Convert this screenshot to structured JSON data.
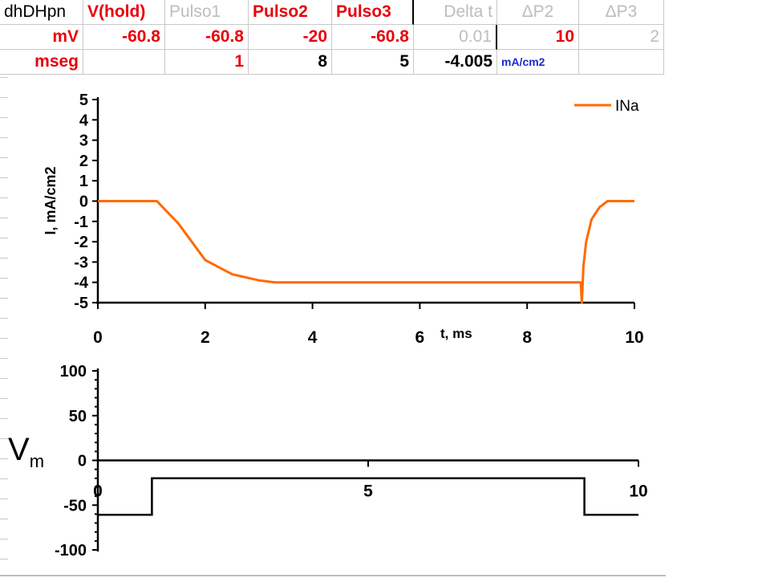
{
  "spreadsheet": {
    "headers": [
      "dhDHpn",
      "V(hold)",
      "Pulso1",
      "Pulso2",
      "Pulso3",
      "Delta t",
      "ΔP2",
      "ΔP3"
    ],
    "row_mv": {
      "label": "mV",
      "values": [
        "-60.8",
        "-60.8",
        "-20",
        "-60.8",
        "0.01",
        "10",
        "2"
      ]
    },
    "row_mseg": {
      "label": "mseg",
      "values": [
        "",
        "1",
        "8",
        "5",
        "-4.005",
        "mA/cm2",
        ""
      ]
    },
    "colors": {
      "red": "#e8000b",
      "gray": "#bdbdbd",
      "blue": "#1a2bd0"
    }
  },
  "chart_data": [
    {
      "type": "line",
      "series": [
        {
          "name": "INa",
          "color": "#ff6a00",
          "x": [
            0,
            1.1,
            1.5,
            2,
            2.5,
            3,
            3.3,
            9.0,
            9.02,
            9.05,
            9.1,
            9.2,
            9.35,
            9.5,
            9.7,
            10
          ],
          "y": [
            0,
            0,
            -1.1,
            -2.9,
            -3.6,
            -3.9,
            -4.0,
            -4.0,
            -5.0,
            -3.2,
            -2.0,
            -0.9,
            -0.3,
            0,
            0,
            0
          ]
        }
      ],
      "xlabel": "t, ms",
      "ylabel": "I, mA/cm2",
      "xlim": [
        0,
        10
      ],
      "ylim": [
        -5,
        5
      ],
      "xticks": [
        "0",
        "2",
        "4",
        "6",
        "8",
        "10"
      ],
      "yticks": [
        "5",
        "4",
        "3",
        "2",
        "1",
        "0",
        "-1",
        "-2",
        "-3",
        "-4",
        "-5"
      ],
      "legend": "top-right"
    },
    {
      "type": "line",
      "series": [
        {
          "color": "#000000",
          "x": [
            0,
            1,
            1,
            9,
            9,
            10
          ],
          "y": [
            -60.8,
            -60.8,
            -20,
            -20,
            -60.8,
            -60.8
          ]
        }
      ],
      "ylabel": "Vm",
      "xlim": [
        0,
        10
      ],
      "ylim": [
        -100,
        100
      ],
      "xticks": [
        "0",
        "5",
        "10"
      ],
      "yticks": [
        "100",
        "50",
        "0",
        "-50",
        "-100"
      ]
    }
  ]
}
